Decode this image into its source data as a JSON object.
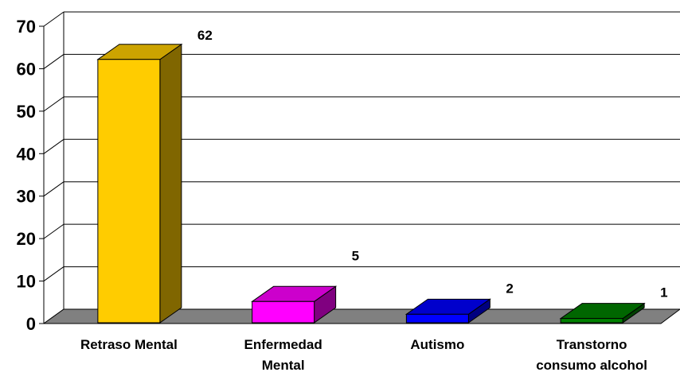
{
  "chart_data": {
    "type": "bar",
    "style": "3d-column",
    "categories": [
      [
        "Retraso Mental"
      ],
      [
        "Enfermedad",
        "Mental"
      ],
      [
        "Autismo"
      ],
      [
        "Transtorno",
        "consumo alcohol"
      ]
    ],
    "values": [
      62,
      5,
      2,
      1
    ],
    "data_labels": [
      "62",
      "5",
      "2",
      "1"
    ],
    "y_ticks": [
      "0",
      "10",
      "20",
      "30",
      "40",
      "50",
      "60",
      "70"
    ],
    "ylim": [
      0,
      70
    ],
    "grid": true,
    "legend": "none",
    "title": "",
    "xlabel": "",
    "ylabel": "",
    "colors": {
      "bars": [
        {
          "front": "#FFCC00",
          "top": "#CCA300",
          "side": "#806600"
        },
        {
          "front": "#FF00FF",
          "top": "#CC00CC",
          "side": "#800080"
        },
        {
          "front": "#0000FF",
          "top": "#0000CC",
          "side": "#000080"
        },
        {
          "front": "#008000",
          "top": "#006600",
          "side": "#004000"
        }
      ],
      "floor": "#808080",
      "grid": "#000000"
    }
  }
}
